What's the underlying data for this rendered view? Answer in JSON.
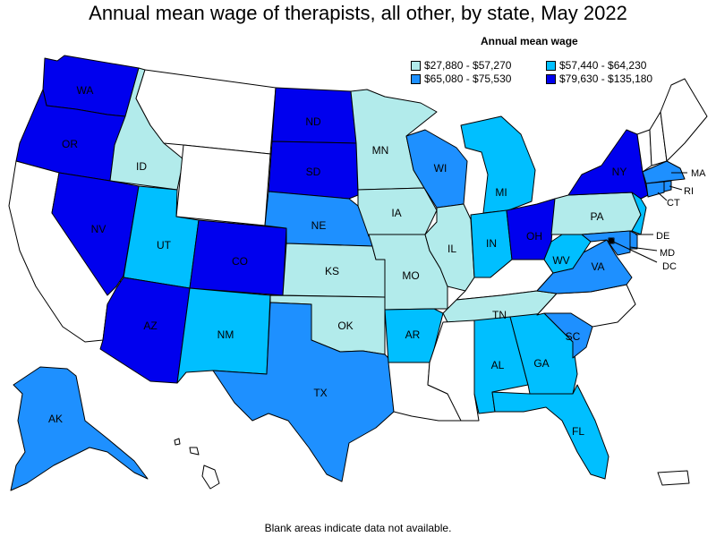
{
  "title": "Annual mean wage of therapists, all other, by state, May 2022",
  "legend": {
    "title": "Annual mean wage",
    "items": [
      {
        "range": "$27,880 - $57,270",
        "color": "#b2ebeb"
      },
      {
        "range": "$57,440 - $64,230",
        "color": "#00bfff"
      },
      {
        "range": "$65,080 - $75,530",
        "color": "#1e90ff"
      },
      {
        "range": "$79,630 - $135,180",
        "color": "#0000ee"
      }
    ]
  },
  "no_data_color": "#ffffff",
  "footnote": "Blank areas indicate data not available.",
  "states": [
    {
      "abbr": "WA",
      "bin": 3
    },
    {
      "abbr": "OR",
      "bin": 3
    },
    {
      "abbr": "CA",
      "bin": null
    },
    {
      "abbr": "ID",
      "bin": 0
    },
    {
      "abbr": "NV",
      "bin": 3
    },
    {
      "abbr": "MT",
      "bin": null
    },
    {
      "abbr": "WY",
      "bin": null
    },
    {
      "abbr": "UT",
      "bin": 1
    },
    {
      "abbr": "AZ",
      "bin": 3
    },
    {
      "abbr": "CO",
      "bin": 3
    },
    {
      "abbr": "NM",
      "bin": 1
    },
    {
      "abbr": "ND",
      "bin": 3
    },
    {
      "abbr": "SD",
      "bin": 3
    },
    {
      "abbr": "NE",
      "bin": 2
    },
    {
      "abbr": "KS",
      "bin": 0
    },
    {
      "abbr": "OK",
      "bin": 0
    },
    {
      "abbr": "TX",
      "bin": 2
    },
    {
      "abbr": "MN",
      "bin": 0
    },
    {
      "abbr": "IA",
      "bin": 0
    },
    {
      "abbr": "MO",
      "bin": 0
    },
    {
      "abbr": "AR",
      "bin": 1
    },
    {
      "abbr": "LA",
      "bin": null
    },
    {
      "abbr": "WI",
      "bin": 2
    },
    {
      "abbr": "IL",
      "bin": 0
    },
    {
      "abbr": "MI",
      "bin": 1
    },
    {
      "abbr": "IN",
      "bin": 1
    },
    {
      "abbr": "OH",
      "bin": 3
    },
    {
      "abbr": "KY",
      "bin": null
    },
    {
      "abbr": "TN",
      "bin": 0
    },
    {
      "abbr": "MS",
      "bin": null
    },
    {
      "abbr": "AL",
      "bin": 1
    },
    {
      "abbr": "GA",
      "bin": 1
    },
    {
      "abbr": "FL",
      "bin": 1
    },
    {
      "abbr": "SC",
      "bin": 2
    },
    {
      "abbr": "NC",
      "bin": null
    },
    {
      "abbr": "VA",
      "bin": 2
    },
    {
      "abbr": "WV",
      "bin": 1
    },
    {
      "abbr": "PA",
      "bin": 0
    },
    {
      "abbr": "NY",
      "bin": 3
    },
    {
      "abbr": "VT",
      "bin": null
    },
    {
      "abbr": "NH",
      "bin": null
    },
    {
      "abbr": "ME",
      "bin": null
    },
    {
      "abbr": "MA",
      "bin": 2
    },
    {
      "abbr": "RI",
      "bin": 2
    },
    {
      "abbr": "CT",
      "bin": 2
    },
    {
      "abbr": "NJ",
      "bin": 1
    },
    {
      "abbr": "DE",
      "bin": 2
    },
    {
      "abbr": "MD",
      "bin": 2
    },
    {
      "abbr": "DC",
      "bin": 2
    },
    {
      "abbr": "AK",
      "bin": 2
    },
    {
      "abbr": "HI",
      "bin": null
    },
    {
      "abbr": "PR",
      "bin": null
    }
  ]
}
